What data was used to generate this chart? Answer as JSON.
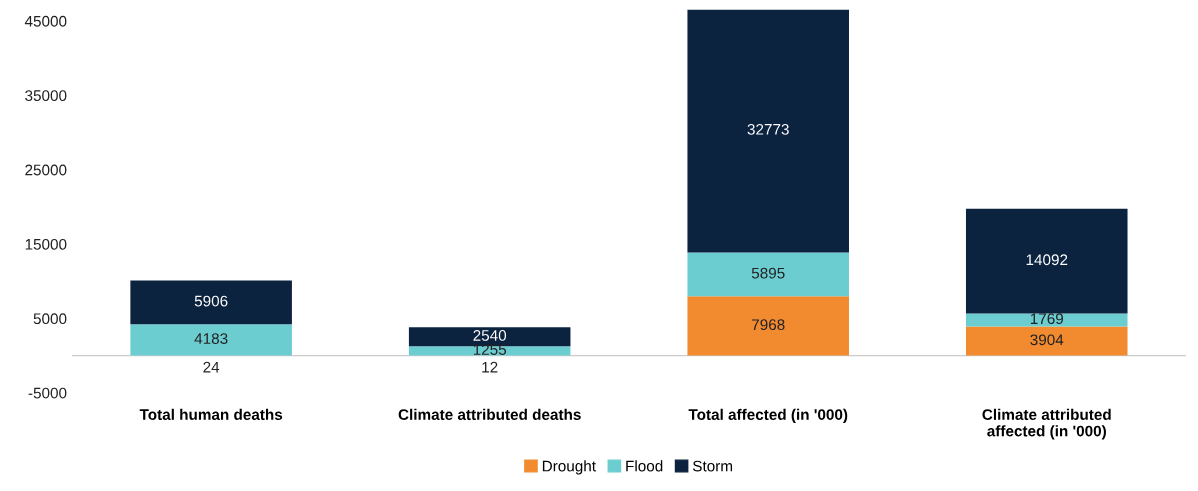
{
  "chart_data": {
    "type": "bar",
    "stacked": true,
    "categories": [
      "Total human deaths",
      "Climate attributed deaths",
      "Total affected (in '000)",
      "Climate attributed\naffected (in '000)"
    ],
    "series": [
      {
        "name": "Drought",
        "color": "#f28b30",
        "values": [
          24,
          12,
          7968,
          3904
        ]
      },
      {
        "name": "Flood",
        "color": "#6ccdd1",
        "values": [
          4183,
          1255,
          5895,
          1769
        ]
      },
      {
        "name": "Storm",
        "color": "#0c2340",
        "values": [
          5906,
          2540,
          32773,
          14092
        ]
      }
    ],
    "ylim": [
      -5000,
      46500
    ],
    "yticks": [
      -5000,
      5000,
      15000,
      25000,
      35000,
      45000
    ],
    "grid": false,
    "legend": "bottom",
    "data_labels": true
  }
}
